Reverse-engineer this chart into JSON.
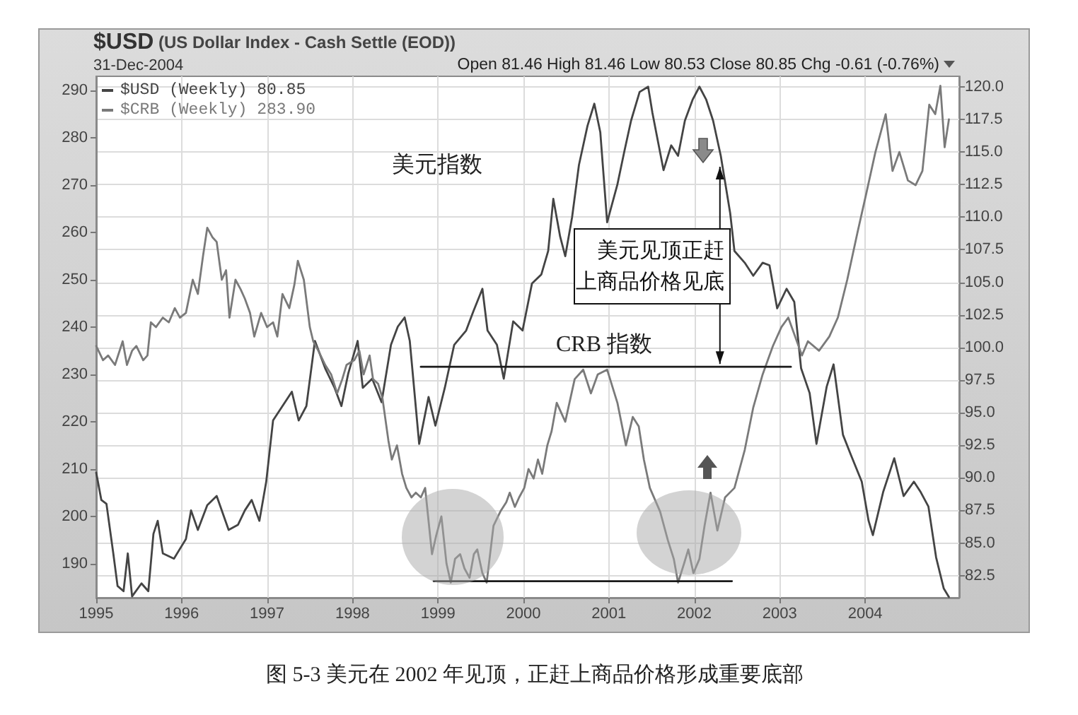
{
  "chart_data": {
    "type": "line",
    "title": "$USD (US Dollar Index - Cash Settle (EOD))",
    "subtitle": "31-Dec-2004",
    "annotations": [
      "Open 81.46 High 81.46 Low 80.53 Close 80.85 Chg -0.61 (-0.76%)",
      "美元指数",
      "CRB 指数",
      {
        "text": "美元见顶正赶上商品价格见底",
        "x": 2002.3,
        "y": 231.6
      },
      "图 5-3 美元在 2002 年见顶，正赶上商品价格形成重要底部"
    ],
    "xlim": [
      1995,
      2005.1
    ],
    "xticks": [
      1995,
      1996,
      1997,
      1998,
      1999,
      2000,
      2001,
      2002,
      2003,
      2004
    ],
    "ylim": [
      182.8,
      293
    ],
    "yticks": [
      190,
      200,
      210,
      220,
      230,
      240,
      250,
      260,
      270,
      280,
      290
    ],
    "y2lim": [
      80.8,
      120.8
    ],
    "y2ticks": [
      82.5,
      {
        "value": 85,
        "label": "85.0"
      },
      87.5,
      {
        "value": 90,
        "label": "90.0"
      },
      92.5,
      {
        "value": 95,
        "label": "95.0"
      },
      97.5,
      {
        "value": 100,
        "label": "100.0"
      },
      102.5,
      {
        "value": 105,
        "label": "105.0"
      },
      107.5,
      {
        "value": 110,
        "label": "110.0"
      },
      112.5,
      {
        "value": 115,
        "label": "115.0"
      },
      117.5,
      {
        "value": 120,
        "label": "120.0"
      }
    ],
    "grid": true,
    "legend": "top left",
    "series": [
      {
        "name": "$USD (Weekly) 80.85",
        "color": "#444444",
        "axis": "y2",
        "x": [
          1995.0,
          1995.06,
          1995.12,
          1995.2,
          1995.25,
          1995.32,
          1995.37,
          1995.42,
          1995.53,
          1995.61,
          1995.67,
          1995.72,
          1995.78,
          1995.91,
          1996.05,
          1996.11,
          1996.19,
          1996.3,
          1996.41,
          1996.55,
          1996.66,
          1996.74,
          1996.82,
          1996.91,
          1996.99,
          1997.07,
          1997.18,
          1997.29,
          1997.37,
          1997.46,
          1997.56,
          1997.68,
          1997.79,
          1997.87,
          1997.95,
          1998.06,
          1998.12,
          1998.23,
          1998.34,
          1998.45,
          1998.53,
          1998.61,
          1998.67,
          1998.78,
          1998.89,
          1998.97,
          1999.08,
          1999.19,
          1999.33,
          1999.41,
          1999.52,
          1999.58,
          1999.69,
          1999.77,
          1999.88,
          1999.99,
          2000.1,
          2000.21,
          2000.29,
          2000.35,
          2000.43,
          2000.49,
          2000.57,
          2000.65,
          2000.75,
          2000.83,
          2000.9,
          2000.98,
          2001.1,
          2001.18,
          2001.26,
          2001.36,
          2001.46,
          2001.51,
          2001.56,
          2001.64,
          2001.73,
          2001.81,
          2001.89,
          2001.98,
          2002.06,
          2002.14,
          2002.22,
          2002.31,
          2002.42,
          2002.47,
          2002.59,
          2002.69,
          2002.8,
          2002.88,
          2002.97,
          2003.08,
          2003.17,
          2003.25,
          2003.35,
          2003.43,
          2003.55,
          2003.63,
          2003.74,
          2003.83,
          2003.96,
          2004.04,
          2004.09,
          2004.21,
          2004.34,
          2004.45,
          2004.57,
          2004.65,
          2004.74,
          2004.83,
          2004.92,
          2004.98
        ],
        "values": [
          90.4,
          88.3,
          88,
          84.2,
          81.7,
          81.3,
          84.2,
          80.9,
          81.9,
          81.3,
          85.7,
          86.7,
          84.2,
          83.8,
          85.3,
          87.5,
          86,
          87.9,
          88.6,
          86,
          86.4,
          87.5,
          88.3,
          86.7,
          89.7,
          94.4,
          95.5,
          96.6,
          94.4,
          95.5,
          100.5,
          98.4,
          96.9,
          95.5,
          98,
          100.5,
          96.9,
          97.6,
          95.8,
          100.2,
          101.6,
          102.3,
          100.5,
          92.6,
          96.2,
          94,
          96.9,
          100.2,
          101.3,
          102.7,
          104.5,
          101.3,
          100.2,
          97.6,
          102,
          101.3,
          104.9,
          105.6,
          107.4,
          111.4,
          108.5,
          107,
          110,
          114,
          117,
          118.7,
          116.5,
          109.6,
          112.5,
          115,
          117.4,
          119.6,
          120,
          118,
          116.3,
          113.6,
          115.5,
          114.7,
          117.4,
          119,
          120,
          119,
          117.4,
          114.7,
          110.3,
          107.4,
          106.5,
          105.5,
          106.5,
          106.3,
          103,
          104.5,
          103.5,
          98.4,
          96.5,
          92.6,
          97,
          98.7,
          93.3,
          91.8,
          89.7,
          86.7,
          85.6,
          88.9,
          91.5,
          88.6,
          89.7,
          88.9,
          87.8,
          83.9,
          81.5,
          80.85
        ]
      },
      {
        "name": "$CRB (Weekly) 283.90",
        "color": "#7a7a7a",
        "x": [
          1995.0,
          1995.08,
          1995.14,
          1995.22,
          1995.31,
          1995.36,
          1995.42,
          1995.47,
          1995.55,
          1995.6,
          1995.64,
          1995.7,
          1995.78,
          1995.85,
          1995.92,
          1995.98,
          1996.05,
          1996.13,
          1996.19,
          1996.25,
          1996.3,
          1996.36,
          1996.41,
          1996.47,
          1996.52,
          1996.56,
          1996.63,
          1996.69,
          1996.74,
          1996.8,
          1996.85,
          1996.93,
          1997.0,
          1997.07,
          1997.12,
          1997.18,
          1997.26,
          1997.32,
          1997.36,
          1997.43,
          1997.5,
          1997.54,
          1997.6,
          1997.68,
          1997.75,
          1997.82,
          1997.88,
          1997.93,
          1998.02,
          1998.08,
          1998.13,
          1998.2,
          1998.24,
          1998.3,
          1998.35,
          1998.42,
          1998.46,
          1998.52,
          1998.58,
          1998.63,
          1998.69,
          1998.74,
          1998.8,
          1998.85,
          1998.89,
          1998.93,
          1998.98,
          1999.04,
          1999.1,
          1999.15,
          1999.2,
          1999.26,
          1999.31,
          1999.37,
          1999.42,
          1999.46,
          1999.52,
          1999.57,
          1999.61,
          1999.65,
          1999.73,
          1999.8,
          1999.84,
          1999.9,
          1999.95,
          2000.01,
          2000.06,
          2000.12,
          2000.17,
          2000.22,
          2000.28,
          2000.33,
          2000.39,
          2000.49,
          2000.6,
          2000.7,
          2000.79,
          2000.87,
          2000.98,
          2001.1,
          2001.2,
          2001.28,
          2001.35,
          2001.41,
          2001.48,
          2001.6,
          2001.69,
          2001.76,
          2001.81,
          2001.88,
          2001.93,
          2001.99,
          2002.06,
          2002.12,
          2002.19,
          2002.27,
          2002.36,
          2002.47,
          2002.59,
          2002.69,
          2002.8,
          2002.92,
          2003.02,
          2003.1,
          2003.18,
          2003.26,
          2003.33,
          2003.46,
          2003.58,
          2003.68,
          2003.79,
          2003.91,
          2004.01,
          2004.12,
          2004.24,
          2004.32,
          2004.4,
          2004.5,
          2004.59,
          2004.67,
          2004.75,
          2004.82,
          2004.88,
          2004.93,
          2004.98
        ],
        "values": [
          236,
          233,
          234,
          232,
          237,
          232,
          235,
          236,
          233,
          234,
          241,
          240,
          242,
          241,
          244,
          242,
          243,
          250,
          247,
          255,
          261,
          259,
          258,
          250,
          252,
          242,
          250,
          248,
          246,
          243,
          238,
          243,
          240,
          241,
          238,
          247,
          244,
          249,
          254,
          250,
          240,
          237,
          235,
          232,
          230,
          226,
          229,
          232,
          233,
          235,
          230,
          234,
          229,
          228,
          225,
          216,
          212,
          215,
          209,
          206,
          204,
          205,
          204,
          206,
          199,
          192,
          196,
          200,
          190,
          186,
          191,
          192,
          189,
          187,
          192,
          193,
          188,
          186,
          192,
          198,
          201,
          203,
          205,
          202,
          204,
          206,
          210,
          208,
          212,
          209,
          215,
          218,
          224,
          220,
          229,
          231,
          226,
          230,
          231,
          224,
          215,
          221,
          219,
          212,
          206,
          201,
          195,
          191,
          186,
          190,
          193,
          188,
          191,
          198,
          205,
          197,
          204,
          206,
          214,
          223,
          230,
          236,
          240,
          242,
          238,
          234,
          237,
          235,
          238,
          242,
          250,
          260,
          268,
          277,
          285,
          273,
          277,
          271,
          270,
          273,
          287,
          285,
          291,
          278,
          283.9
        ]
      },
      {
        "color": "#1a1a1a",
        "x": [
          1998.8,
          2003.13
        ],
        "values": [
          231.6,
          231.6
        ]
      },
      {
        "color": "#1a1a1a",
        "x": [
          1998.95,
          2002.44
        ],
        "values": [
          186.3,
          186.3
        ]
      }
    ]
  }
}
